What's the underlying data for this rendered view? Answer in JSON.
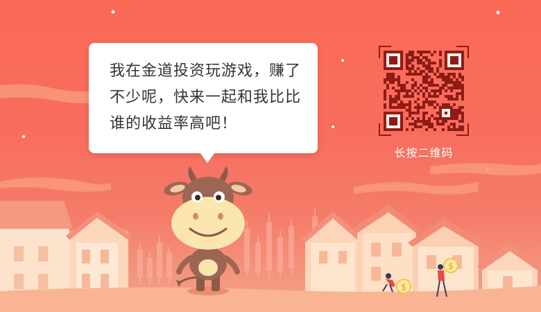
{
  "share_card": {
    "bubble_text": "我在金道投资玩游戏，赚了不少呢，快来一起和我比比谁的收益率高吧！",
    "qr_caption": "长按二维码"
  },
  "icons": {
    "mascot": "cow-mascot-icon",
    "qr": "qr-code-icon",
    "coin": "dollar-coin-icon"
  },
  "colors": {
    "background_top": "#fb6a57",
    "background_bottom": "#f3a58a",
    "bubble": "#ffffff",
    "qr_dark": "#8f1b15",
    "caption_text": "#ffffff"
  }
}
